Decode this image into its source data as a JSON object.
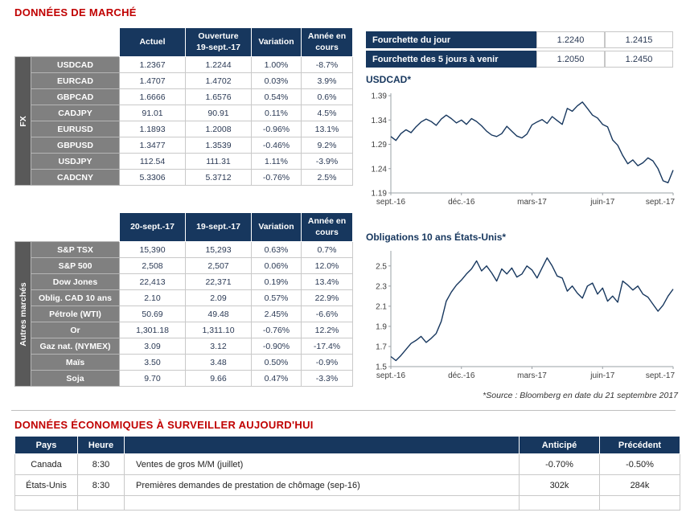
{
  "sections": {
    "market_title": "DONNÉES DE MARCHÉ",
    "econ_title": "DONNÉES ÉCONOMIQUES À SURVEILLER AUJOURD'HUI",
    "source_note": "*Source : Bloomberg en date du  21 septembre 2017"
  },
  "colors": {
    "navy": "#17375E",
    "heading_red": "#C00000",
    "positive_green": "#00A14B",
    "negative_red": "#FF0000",
    "row_label_gray": "#808080",
    "group_bar_gray": "#595959"
  },
  "fx_table": {
    "group_label": "FX",
    "headers": [
      "Actuel",
      "Ouverture\n19-sept.-17",
      "Variation",
      "Année en\ncours"
    ],
    "rows": [
      {
        "label": "USDCAD",
        "values": [
          "1.2367",
          "1.2244",
          "1.00%",
          "-8.7%"
        ],
        "colors": [
          "",
          "",
          "g",
          "r"
        ]
      },
      {
        "label": "EURCAD",
        "values": [
          "1.4707",
          "1.4702",
          "0.03%",
          "3.9%"
        ],
        "colors": [
          "",
          "",
          "g",
          "g"
        ]
      },
      {
        "label": "GBPCAD",
        "values": [
          "1.6666",
          "1.6576",
          "0.54%",
          "0.6%"
        ],
        "colors": [
          "",
          "",
          "g",
          "g"
        ]
      },
      {
        "label": "CADJPY",
        "values": [
          "91.01",
          "90.91",
          "0.11%",
          "4.5%"
        ],
        "colors": [
          "",
          "",
          "g",
          "g"
        ]
      },
      {
        "label": "EURUSD",
        "values": [
          "1.1893",
          "1.2008",
          "-0.96%",
          "13.1%"
        ],
        "colors": [
          "",
          "",
          "r",
          "g"
        ]
      },
      {
        "label": "GBPUSD",
        "values": [
          "1.3477",
          "1.3539",
          "-0.46%",
          "9.2%"
        ],
        "colors": [
          "",
          "",
          "r",
          "g"
        ]
      },
      {
        "label": "USDJPY",
        "values": [
          "112.54",
          "111.31",
          "1.11%",
          "-3.9%"
        ],
        "colors": [
          "",
          "",
          "g",
          "r"
        ]
      },
      {
        "label": "CADCNY",
        "values": [
          "5.3306",
          "5.3712",
          "-0.76%",
          "2.5%"
        ],
        "colors": [
          "",
          "",
          "r",
          "g"
        ]
      }
    ]
  },
  "range_table": {
    "rows": [
      {
        "label": "Fourchette du jour",
        "values": [
          "1.2240",
          "1.2415"
        ]
      },
      {
        "label": "Fourchette des 5 jours à venir",
        "values": [
          "1.2050",
          "1.2450"
        ]
      }
    ]
  },
  "markets_table": {
    "group_label": "Autres marchés",
    "headers": [
      "20-sept.-17",
      "19-sept.-17",
      "Variation",
      "Année en\ncours"
    ],
    "rows": [
      {
        "label": "S&P TSX",
        "values": [
          "15,390",
          "15,293",
          "0.63%",
          "0.7%"
        ],
        "colors": [
          "",
          "",
          "g",
          "g"
        ]
      },
      {
        "label": "S&P 500",
        "values": [
          "2,508",
          "2,507",
          "0.06%",
          "12.0%"
        ],
        "colors": [
          "",
          "",
          "g",
          "g"
        ]
      },
      {
        "label": "Dow Jones",
        "values": [
          "22,413",
          "22,371",
          "0.19%",
          "13.4%"
        ],
        "colors": [
          "",
          "",
          "g",
          "g"
        ]
      },
      {
        "label": "Oblig. CAD 10 ans",
        "values": [
          "2.10",
          "2.09",
          "0.57%",
          "22.9%"
        ],
        "colors": [
          "",
          "",
          "g",
          "g"
        ]
      },
      {
        "label": "Pétrole (WTI)",
        "values": [
          "50.69",
          "49.48",
          "2.45%",
          "-6.6%"
        ],
        "colors": [
          "",
          "",
          "g",
          "r"
        ]
      },
      {
        "label": "Or",
        "values": [
          "1,301.18",
          "1,311.10",
          "-0.76%",
          "12.2%"
        ],
        "colors": [
          "",
          "",
          "r",
          "g"
        ]
      },
      {
        "label": "Gaz nat. (NYMEX)",
        "values": [
          "3.09",
          "3.12",
          "-0.90%",
          "-17.4%"
        ],
        "colors": [
          "",
          "",
          "r",
          "r"
        ]
      },
      {
        "label": "Maïs",
        "values": [
          "3.50",
          "3.48",
          "0.50%",
          "-0.9%"
        ],
        "colors": [
          "",
          "",
          "g",
          "r"
        ]
      },
      {
        "label": "Soja",
        "values": [
          "9.70",
          "9.66",
          "0.47%",
          "-3.3%"
        ],
        "colors": [
          "",
          "",
          "g",
          "r"
        ]
      }
    ]
  },
  "econ_table": {
    "headers": [
      "Pays",
      "Heure",
      "",
      "Anticipé",
      "Précédent"
    ],
    "rows": [
      {
        "cells": [
          "Canada",
          "8:30",
          "Ventes de gros M/M (juillet)",
          "-0.70%",
          "-0.50%"
        ]
      },
      {
        "cells": [
          "États-Unis",
          "8:30",
          "Premières demandes de prestation de chômage (sep-16)",
          "302k",
          "284k"
        ]
      },
      {
        "cells": [
          "",
          "",
          "",
          "",
          ""
        ]
      }
    ]
  },
  "chart_data": [
    {
      "type": "line",
      "title": "USDCAD*",
      "x_ticks": [
        "sept.-16",
        "déc.-16",
        "mars-17",
        "juin-17",
        "sept.-17"
      ],
      "y_ticks": [
        "1.19",
        "1.24",
        "1.29",
        "1.34",
        "1.39"
      ],
      "ylim": [
        1.19,
        1.395
      ],
      "values": [
        1.306,
        1.298,
        1.312,
        1.32,
        1.314,
        1.326,
        1.336,
        1.342,
        1.337,
        1.329,
        1.342,
        1.35,
        1.343,
        1.334,
        1.34,
        1.331,
        1.343,
        1.337,
        1.328,
        1.317,
        1.309,
        1.306,
        1.312,
        1.327,
        1.317,
        1.307,
        1.303,
        1.311,
        1.33,
        1.336,
        1.341,
        1.333,
        1.347,
        1.339,
        1.331,
        1.364,
        1.358,
        1.369,
        1.377,
        1.364,
        1.35,
        1.344,
        1.331,
        1.326,
        1.299,
        1.288,
        1.267,
        1.25,
        1.258,
        1.246,
        1.252,
        1.262,
        1.256,
        1.24,
        1.215,
        1.211,
        1.237
      ]
    },
    {
      "type": "line",
      "title": "Obligations 10 ans États-Unis*",
      "x_ticks": [
        "sept.-16",
        "déc.-16",
        "mars-17",
        "juin-17",
        "sept.-17"
      ],
      "y_ticks": [
        "1.5",
        "1.7",
        "1.9",
        "2.1",
        "2.3",
        "2.5"
      ],
      "ylim": [
        1.5,
        2.65
      ],
      "values": [
        1.6,
        1.56,
        1.61,
        1.67,
        1.73,
        1.76,
        1.8,
        1.74,
        1.78,
        1.83,
        1.95,
        2.15,
        2.24,
        2.31,
        2.36,
        2.42,
        2.47,
        2.55,
        2.45,
        2.5,
        2.43,
        2.35,
        2.47,
        2.42,
        2.48,
        2.39,
        2.42,
        2.5,
        2.46,
        2.38,
        2.48,
        2.58,
        2.5,
        2.4,
        2.38,
        2.25,
        2.3,
        2.23,
        2.18,
        2.3,
        2.33,
        2.22,
        2.28,
        2.15,
        2.2,
        2.14,
        2.35,
        2.31,
        2.26,
        2.3,
        2.22,
        2.19,
        2.12,
        2.05,
        2.11,
        2.2,
        2.27
      ]
    }
  ]
}
